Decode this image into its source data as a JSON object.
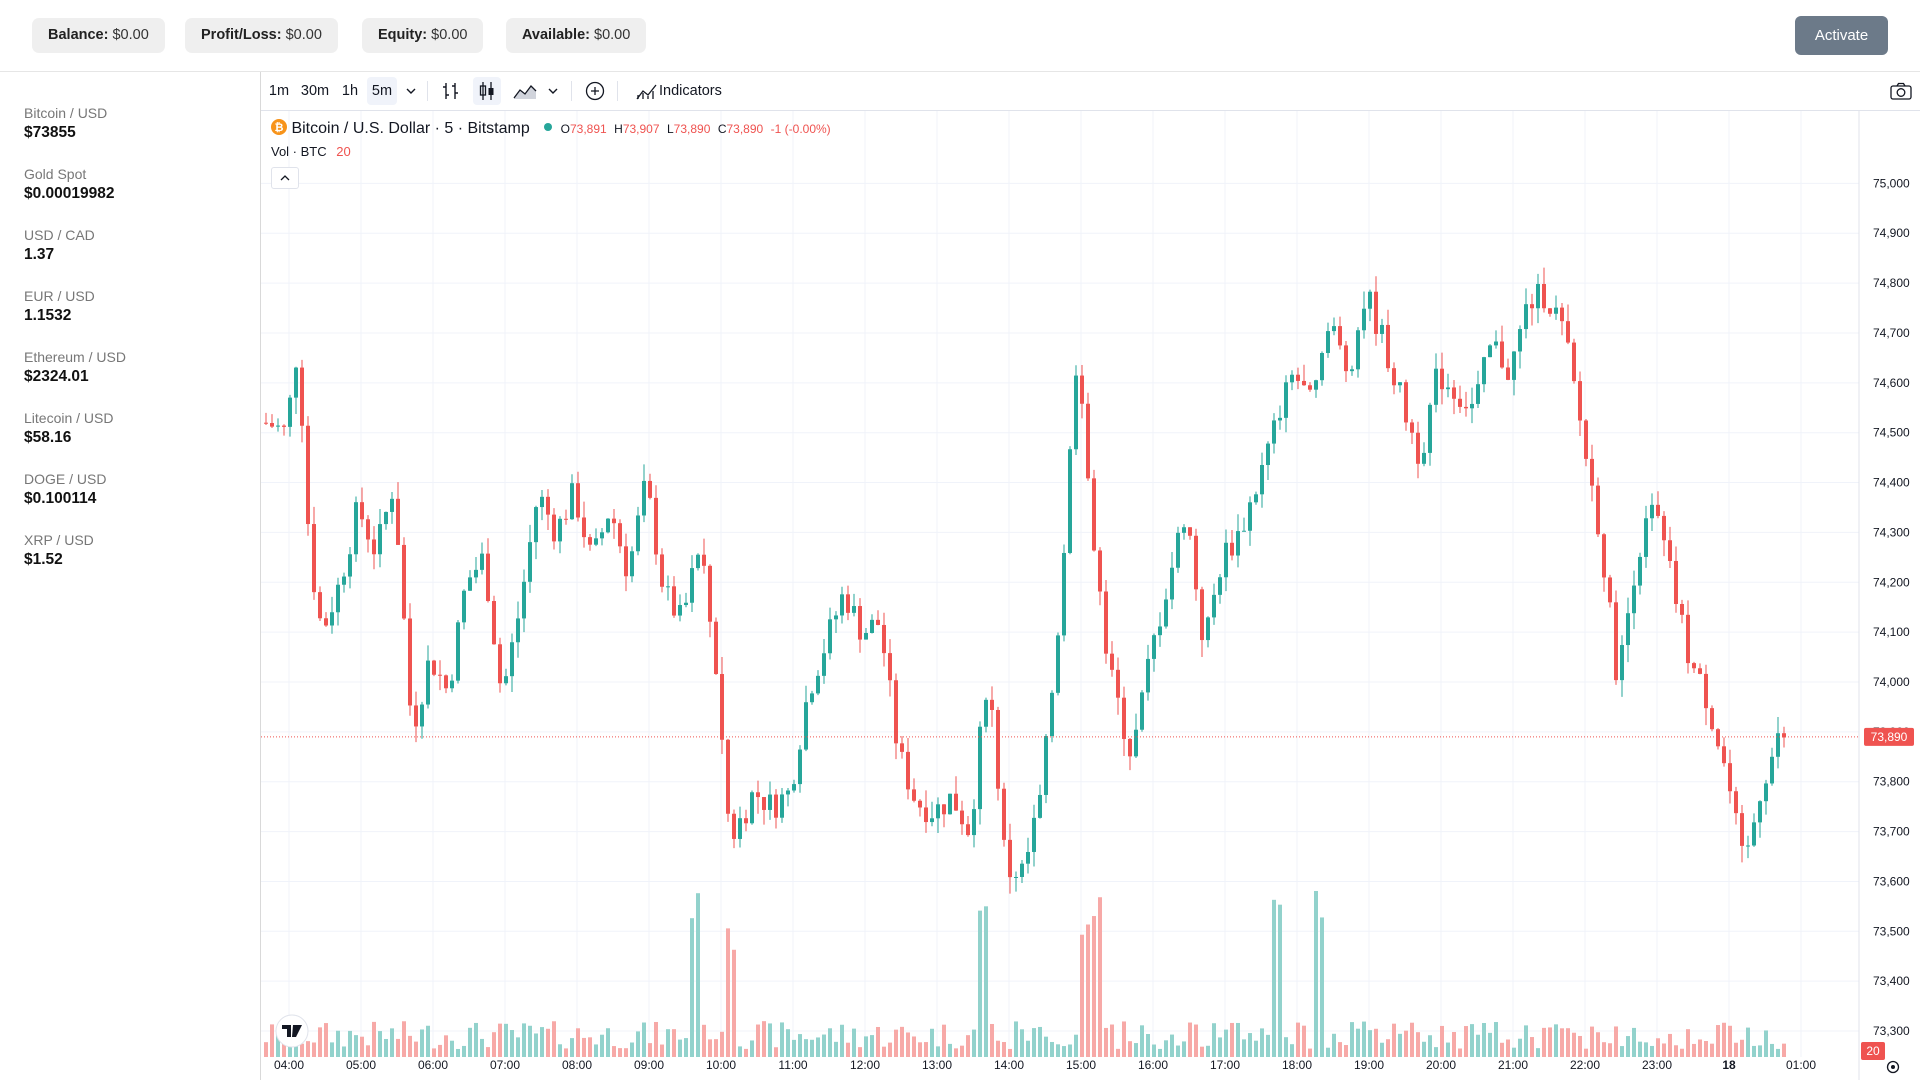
{
  "account": {
    "balance_label": "Balance:",
    "balance_value": "$0.00",
    "pl_label": "Profit/Loss:",
    "pl_value": "$0.00",
    "equity_label": "Equity:",
    "equity_value": "$0.00",
    "available_label": "Available:",
    "available_value": "$0.00",
    "activate_label": "Activate"
  },
  "watchlist": [
    {
      "name": "Bitcoin / USD",
      "price": "$73855"
    },
    {
      "name": "Gold Spot",
      "price": "$0.00019982"
    },
    {
      "name": "USD / CAD",
      "price": "1.37"
    },
    {
      "name": "EUR / USD",
      "price": "1.1532"
    },
    {
      "name": "Ethereum / USD",
      "price": "$2324.01"
    },
    {
      "name": "Litecoin / USD",
      "price": "$58.16"
    },
    {
      "name": "DOGE / USD",
      "price": "$0.100114"
    },
    {
      "name": "XRP / USD",
      "price": "$1.52"
    }
  ],
  "toolbar": {
    "intervals": [
      "1m",
      "30m",
      "1h",
      "5m"
    ],
    "active_interval": "5m",
    "indicators_label": "Indicators",
    "icons": [
      "chevron-down-icon",
      "bar-style-icon",
      "candle-style-icon",
      "area-style-icon",
      "compare-add-icon",
      "indicators-icon",
      "camera-icon"
    ]
  },
  "legend": {
    "symbol_title": "Bitcoin / U.S. Dollar · 5 · Bitstamp",
    "o_label": "O",
    "o_value": "73,891",
    "h_label": "H",
    "h_value": "73,907",
    "l_label": "L",
    "l_value": "73,890",
    "c_label": "C",
    "c_value": "73,890",
    "change": "-1 (-0.00%)",
    "vol_label": "Vol · BTC",
    "vol_value": "20"
  },
  "colors": {
    "up": "#26a69a",
    "down": "#ef5350",
    "vol_up": "#92d2cc",
    "vol_down": "#f7a9a7",
    "grid": "#f0f3fa",
    "axis_text": "#131722"
  },
  "chart_data": {
    "type": "candlestick",
    "symbol": "Bitcoin / U.S. Dollar",
    "interval": "5",
    "exchange": "Bitstamp",
    "y_ticks": [
      73300,
      73400,
      73500,
      73600,
      73700,
      73800,
      73900,
      74000,
      74100,
      74200,
      74300,
      74400,
      74500,
      74600,
      74700,
      74800,
      74900,
      75000
    ],
    "y_tick_labels": [
      "73,300",
      "73,400",
      "73,500",
      "73,600",
      "73,700",
      "73,800",
      "73,900",
      "74,000",
      "74,100",
      "74,200",
      "74,300",
      "74,400",
      "74,500",
      "74,600",
      "74,700",
      "74,800",
      "74,900",
      "75,000"
    ],
    "ylim": [
      73280,
      75085
    ],
    "x_tick_labels": [
      "04:00",
      "05:00",
      "06:00",
      "07:00",
      "08:00",
      "09:00",
      "10:00",
      "11:00",
      "12:00",
      "13:00",
      "14:00",
      "15:00",
      "16:00",
      "17:00",
      "18:00",
      "19:00",
      "20:00",
      "21:00",
      "22:00",
      "23:00",
      "18",
      "01:00"
    ],
    "last_price": 73890,
    "last_price_label": "73,890",
    "last_volume_label": "20",
    "path_waypoints_time_price": [
      [
        "03:45",
        74520
      ],
      [
        "04:00",
        74500
      ],
      [
        "04:10",
        74680
      ],
      [
        "04:20",
        74250
      ],
      [
        "04:30",
        74100
      ],
      [
        "04:45",
        74200
      ],
      [
        "05:00",
        74350
      ],
      [
        "05:15",
        74260
      ],
      [
        "05:30",
        74400
      ],
      [
        "05:45",
        73900
      ],
      [
        "06:00",
        74050
      ],
      [
        "06:15",
        73980
      ],
      [
        "06:30",
        74200
      ],
      [
        "06:45",
        74250
      ],
      [
        "07:00",
        73970
      ],
      [
        "07:15",
        74150
      ],
      [
        "07:30",
        74380
      ],
      [
        "07:45",
        74300
      ],
      [
        "08:00",
        74380
      ],
      [
        "08:15",
        74240
      ],
      [
        "08:30",
        74350
      ],
      [
        "08:45",
        74220
      ],
      [
        "09:00",
        74400
      ],
      [
        "09:15",
        74180
      ],
      [
        "09:30",
        74120
      ],
      [
        "09:45",
        74280
      ],
      [
        "10:00",
        74000
      ],
      [
        "10:10",
        73680
      ],
      [
        "10:30",
        73780
      ],
      [
        "10:45",
        73750
      ],
      [
        "11:00",
        73780
      ],
      [
        "11:15",
        73980
      ],
      [
        "11:30",
        74080
      ],
      [
        "11:45",
        74180
      ],
      [
        "12:00",
        74100
      ],
      [
        "12:15",
        74120
      ],
      [
        "12:30",
        73860
      ],
      [
        "12:45",
        73760
      ],
      [
        "13:00",
        73740
      ],
      [
        "13:15",
        73770
      ],
      [
        "13:30",
        73700
      ],
      [
        "13:45",
        74030
      ],
      [
        "14:00",
        73620
      ],
      [
        "14:15",
        73620
      ],
      [
        "14:30",
        73780
      ],
      [
        "14:45",
        74150
      ],
      [
        "15:00",
        74700
      ],
      [
        "15:10",
        74350
      ],
      [
        "15:25",
        74030
      ],
      [
        "15:45",
        73850
      ],
      [
        "16:00",
        74050
      ],
      [
        "16:15",
        74200
      ],
      [
        "16:30",
        74350
      ],
      [
        "16:45",
        74070
      ],
      [
        "17:00",
        74250
      ],
      [
        "17:15",
        74300
      ],
      [
        "17:30",
        74400
      ],
      [
        "17:45",
        74520
      ],
      [
        "18:00",
        74620
      ],
      [
        "18:15",
        74550
      ],
      [
        "18:30",
        74720
      ],
      [
        "18:45",
        74620
      ],
      [
        "19:00",
        74780
      ],
      [
        "19:15",
        74680
      ],
      [
        "19:30",
        74560
      ],
      [
        "19:45",
        74450
      ],
      [
        "20:00",
        74620
      ],
      [
        "20:15",
        74580
      ],
      [
        "20:30",
        74550
      ],
      [
        "20:45",
        74680
      ],
      [
        "21:00",
        74620
      ],
      [
        "21:15",
        74760
      ],
      [
        "21:30",
        74780
      ],
      [
        "21:45",
        74700
      ],
      [
        "22:00",
        74500
      ],
      [
        "22:15",
        74300
      ],
      [
        "22:30",
        74000
      ],
      [
        "22:45",
        74250
      ],
      [
        "23:00",
        74350
      ],
      [
        "23:15",
        74200
      ],
      [
        "23:30",
        74040
      ],
      [
        "23:45",
        73960
      ],
      [
        "24:00",
        73820
      ],
      [
        "24:15",
        73620
      ],
      [
        "24:30",
        73800
      ],
      [
        "24:45",
        73890
      ]
    ],
    "volume_spikes_time": [
      "15:00",
      "15:10",
      "17:40",
      "18:15",
      "13:35",
      "09:35",
      "10:05"
    ],
    "note_values_estimated": "volume bars are near-uniform small values with occasional spikes"
  }
}
